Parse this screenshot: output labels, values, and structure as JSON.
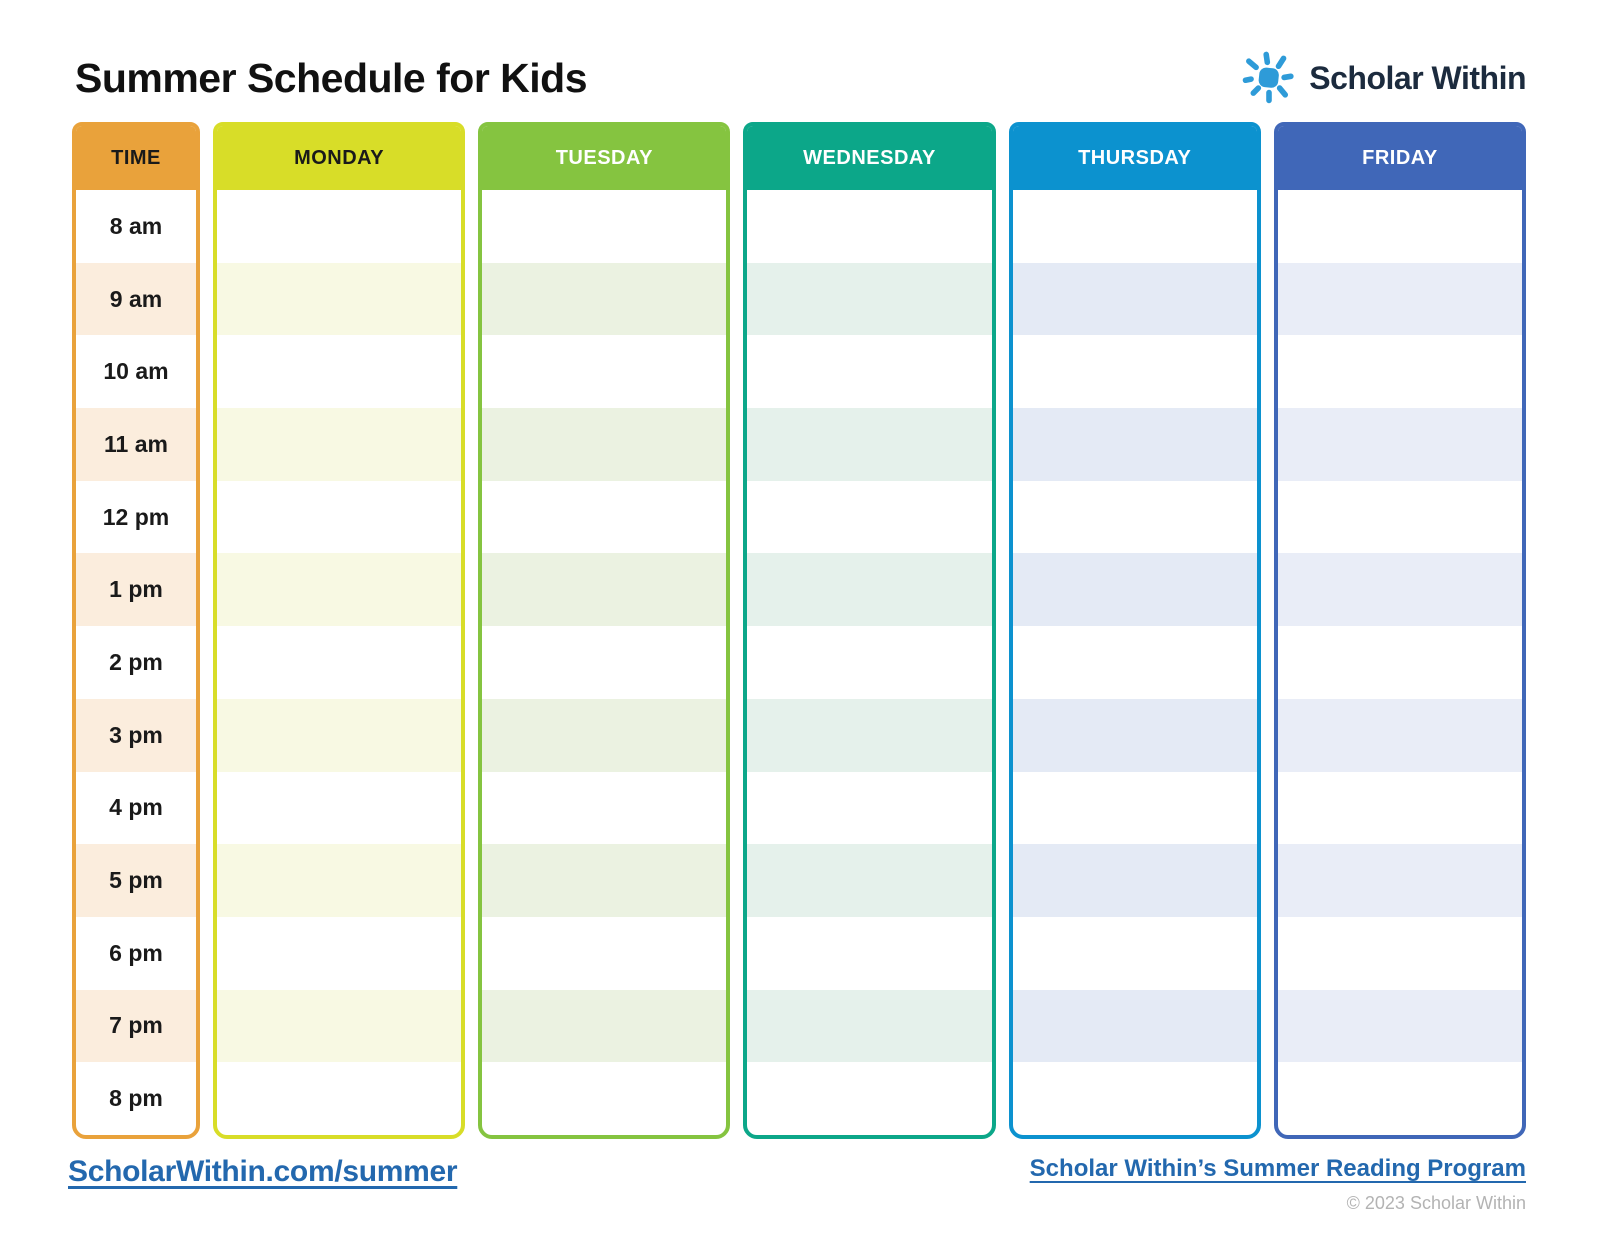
{
  "header": {
    "title": "Summer Schedule for Kids",
    "brand": "Scholar Within",
    "brand_text_color": "#1c2b3e",
    "sun_icon_color": "#2e9bd8"
  },
  "schedule": {
    "time_column": {
      "header": "TIME",
      "color": "#e9a23b",
      "tint": "#fbeddd",
      "header_text_color": "#1a1a1a",
      "times": [
        "8 am",
        "9 am",
        "10 am",
        "11 am",
        "12 pm",
        "1 pm",
        "2 pm",
        "3 pm",
        "4 pm",
        "5 pm",
        "6 pm",
        "7 pm",
        "8 pm"
      ]
    },
    "day_columns": [
      {
        "label": "MONDAY",
        "color": "#d8dd28",
        "tint": "#f8f9e3",
        "header_text_color": "#1a1a1a"
      },
      {
        "label": "TUESDAY",
        "color": "#85c440",
        "tint": "#ebf2e1",
        "header_text_color": "#ffffff"
      },
      {
        "label": "WEDNESDAY",
        "color": "#0ca789",
        "tint": "#e5f1eb",
        "header_text_color": "#ffffff"
      },
      {
        "label": "THURSDAY",
        "color": "#0c92cf",
        "tint": "#e4eaf5",
        "header_text_color": "#ffffff"
      },
      {
        "label": "FRIDAY",
        "color": "#4067b8",
        "tint": "#e9edf7",
        "header_text_color": "#ffffff"
      }
    ],
    "row_count": 13
  },
  "footer": {
    "left_link": "ScholarWithin.com/summer",
    "right_link": "Scholar Within’s Summer Reading Program",
    "copyright": "© 2023 Scholar Within",
    "link_color": "#2368ae"
  }
}
